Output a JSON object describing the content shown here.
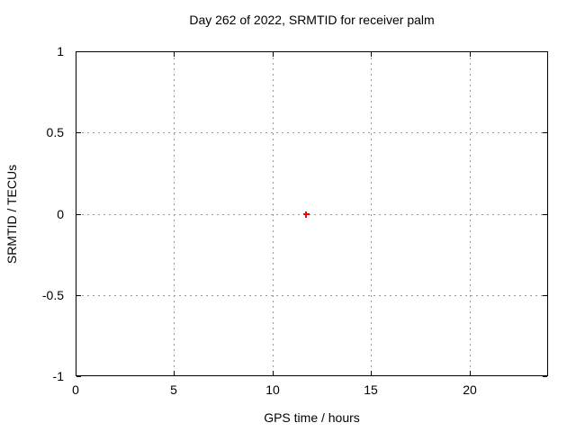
{
  "window": {
    "background": "#ffffff"
  },
  "chart_data": {
    "type": "scatter",
    "title": "Day 262 of 2022, SRMTID for receiver palm",
    "xlabel": "GPS time / hours",
    "ylabel": "SRMTID / TECUs",
    "xlim": [
      0,
      24
    ],
    "ylim": [
      -1,
      1
    ],
    "xticks": {
      "values": [
        0,
        5,
        10,
        15,
        20
      ],
      "labels": [
        "0",
        "5",
        "10",
        "15",
        "20"
      ]
    },
    "yticks": {
      "values": [
        1,
        0.5,
        0,
        -0.5,
        -1
      ],
      "labels": [
        "1",
        "0.5",
        "0",
        "-0.5",
        "-1"
      ]
    },
    "grid": true,
    "grid_style": "dashed",
    "legend": "none",
    "border": true,
    "colors": {
      "background": "#ffffff",
      "axis": "#000000",
      "text": "#000000",
      "grid": "#999999",
      "point": "#ff0000"
    },
    "series": [
      {
        "name": "SRMTID",
        "type": "points",
        "marker": "plus",
        "color": "#ff0000",
        "points": [
          {
            "x": 11.72,
            "y": 0.0
          }
        ]
      }
    ]
  }
}
